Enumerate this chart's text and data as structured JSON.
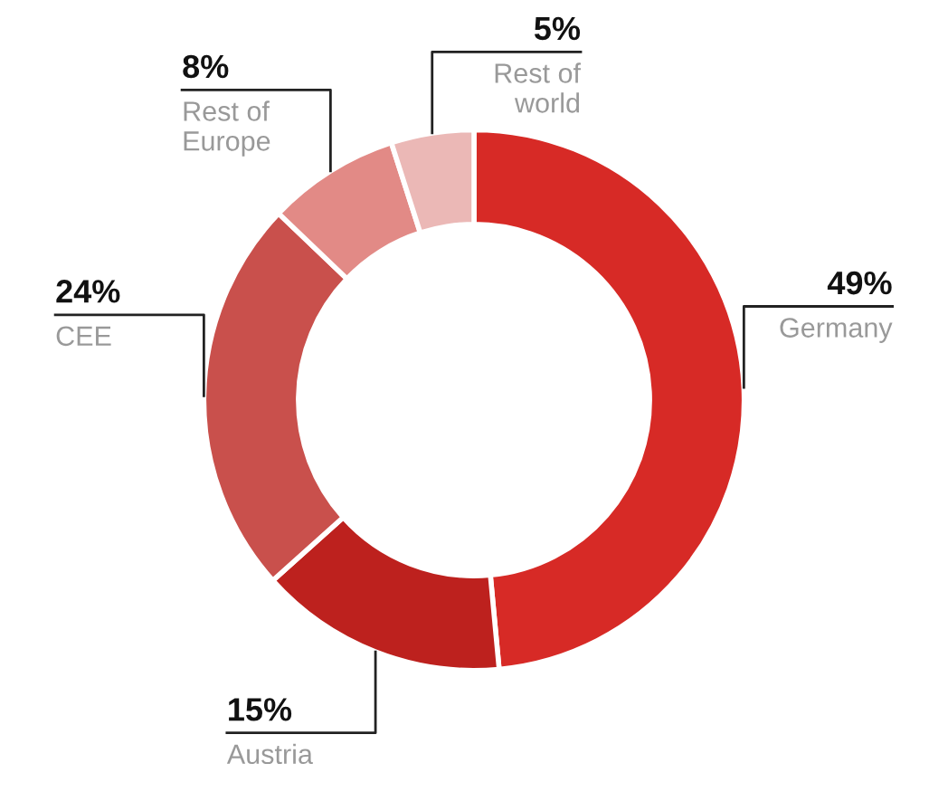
{
  "chart_data": {
    "type": "donut",
    "categories": [
      "Germany",
      "Austria",
      "CEE",
      "Rest of\nEurope",
      "Rest of\nworld"
    ],
    "values": [
      49,
      15,
      24,
      8,
      5
    ],
    "value_labels": [
      "49%",
      "15%",
      "24%",
      "8%",
      "5%"
    ],
    "colors": [
      "#d72a26",
      "#bd211e",
      "#c9504c",
      "#e28a86",
      "#ebb8b6"
    ],
    "legend": false
  }
}
